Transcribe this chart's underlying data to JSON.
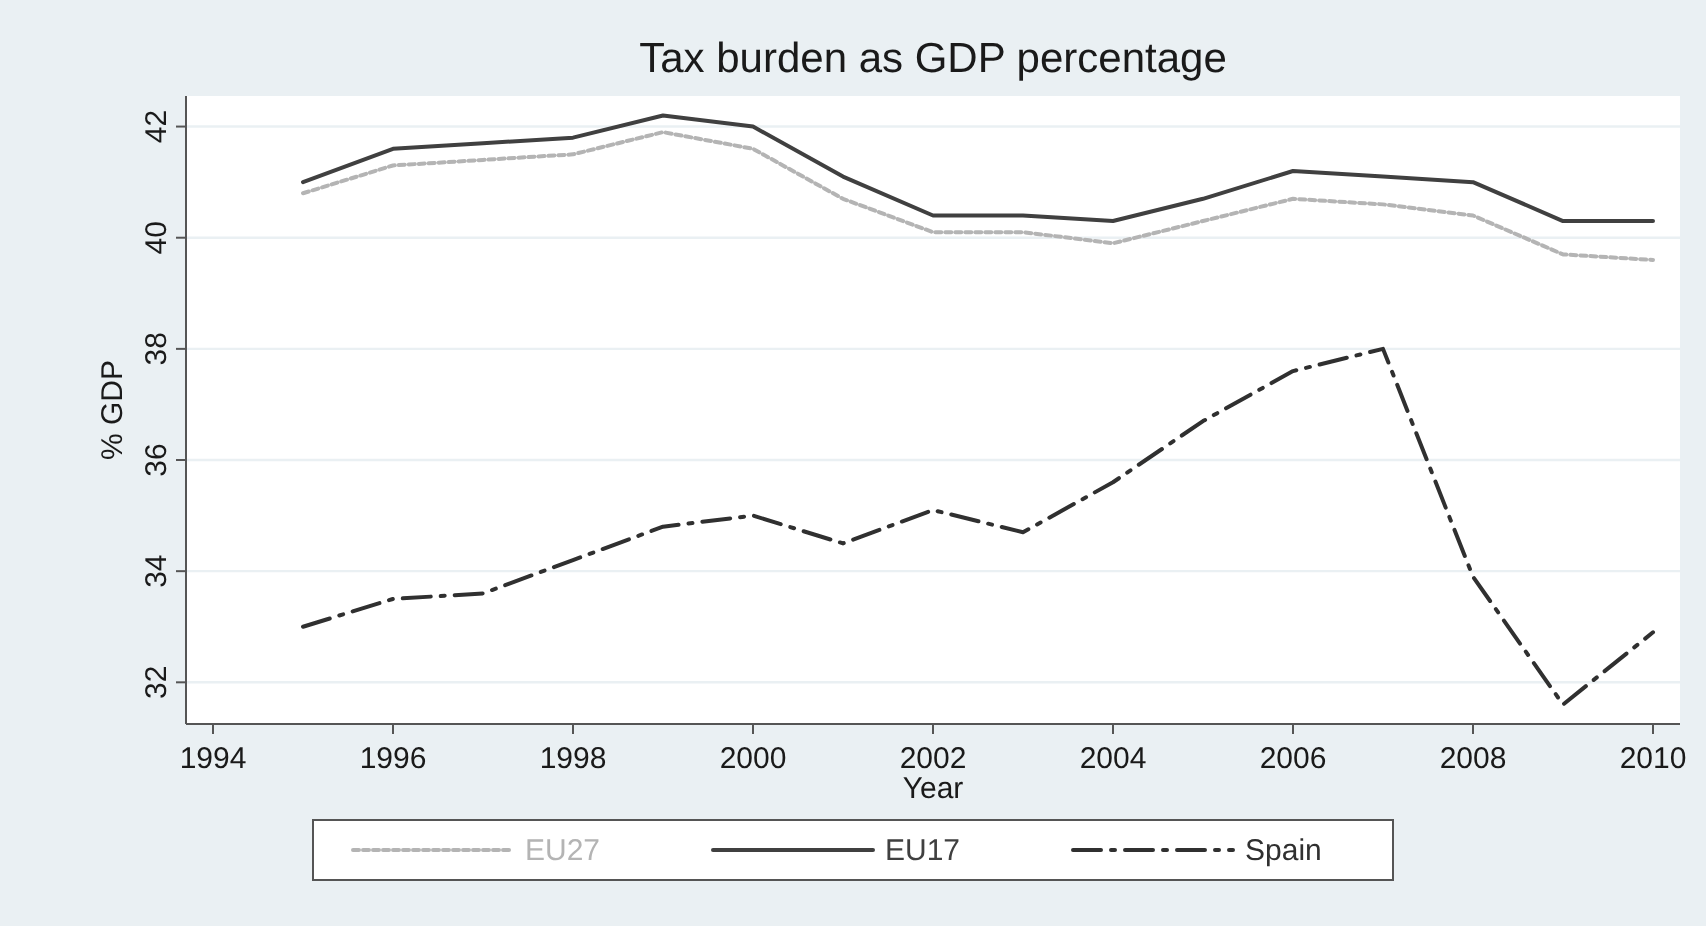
{
  "chart_data": {
    "type": "line",
    "title": "Tax burden as GDP percentage",
    "xlabel": "Year",
    "ylabel": "% GDP",
    "x": [
      1995,
      1996,
      1997,
      1998,
      1999,
      2000,
      2001,
      2002,
      2003,
      2004,
      2005,
      2006,
      2007,
      2008,
      2009,
      2010
    ],
    "series": [
      {
        "name": "EU27",
        "color": "#b4b4b4",
        "line_style": "dotted",
        "values": [
          40.8,
          41.3,
          41.4,
          41.5,
          41.9,
          41.6,
          40.7,
          40.1,
          40.1,
          39.9,
          40.3,
          40.7,
          40.6,
          40.4,
          39.7,
          39.6
        ]
      },
      {
        "name": "EU17",
        "color": "#404040",
        "line_style": "solid",
        "values": [
          41.0,
          41.6,
          41.7,
          41.8,
          42.2,
          42.0,
          41.1,
          40.4,
          40.4,
          40.3,
          40.7,
          41.2,
          41.1,
          41.0,
          40.3,
          40.3
        ]
      },
      {
        "name": "Spain",
        "color": "#303030",
        "line_style": "dashed",
        "values": [
          33.0,
          33.5,
          33.6,
          34.2,
          34.8,
          35.0,
          34.5,
          35.1,
          34.7,
          35.6,
          36.7,
          37.6,
          38.0,
          33.9,
          31.6,
          32.9
        ]
      }
    ],
    "xlim": [
      1993.7,
      2010.3
    ],
    "xticks": [
      1994,
      1996,
      1998,
      2000,
      2002,
      2004,
      2006,
      2008,
      2010
    ],
    "ylim": [
      31.25,
      42.55
    ],
    "yticks": [
      32,
      34,
      36,
      38,
      40,
      42
    ],
    "grid": "y",
    "legend": "bottom",
    "marker": "none"
  }
}
